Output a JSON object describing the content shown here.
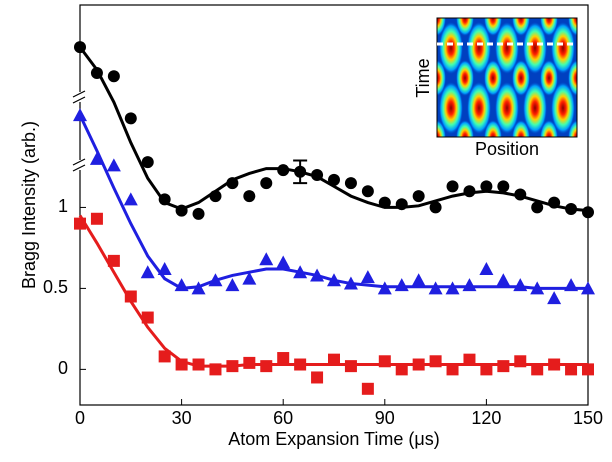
{
  "chart_data": {
    "type": "scatter",
    "xlabel": "Atom Expansion Time (μs)",
    "ylabel": "Bragg Intensity (arb.)",
    "xlim": [
      0,
      150
    ],
    "ylim": [
      -0.22,
      2.25
    ],
    "xticks": [
      0,
      30,
      60,
      90,
      120,
      150
    ],
    "yticks": [
      0,
      0.5,
      1
    ],
    "x": [
      0,
      5,
      10,
      15,
      20,
      25,
      30,
      35,
      40,
      45,
      50,
      55,
      60,
      65,
      70,
      75,
      80,
      85,
      90,
      95,
      100,
      105,
      110,
      115,
      120,
      125,
      130,
      135,
      140,
      145,
      150
    ],
    "series": [
      {
        "color": "#000000",
        "marker": "circle",
        "values": [
          1.99,
          1.83,
          1.81,
          1.55,
          1.28,
          1.05,
          0.98,
          0.96,
          1.07,
          1.15,
          1.07,
          1.15,
          1.23,
          1.22,
          1.2,
          1.17,
          1.15,
          1.1,
          1.03,
          1.02,
          1.07,
          1.0,
          1.13,
          1.1,
          1.13,
          1.13,
          1.08,
          1.0,
          1.03,
          0.99,
          0.97
        ],
        "fit": [
          1.99,
          1.85,
          1.65,
          1.4,
          1.18,
          1.03,
          0.99,
          1.03,
          1.1,
          1.17,
          1.21,
          1.24,
          1.24,
          1.22,
          1.19,
          1.13,
          1.07,
          1.03,
          1.0,
          1.0,
          1.01,
          1.04,
          1.07,
          1.09,
          1.1,
          1.09,
          1.07,
          1.04,
          1.01,
          0.99,
          0.98
        ]
      },
      {
        "color": "#1f1fe0",
        "marker": "triangle",
        "values": [
          1.57,
          1.3,
          1.26,
          1.05,
          0.6,
          0.62,
          0.52,
          0.5,
          0.55,
          0.52,
          0.56,
          0.68,
          0.66,
          0.6,
          0.58,
          0.55,
          0.53,
          0.57,
          0.5,
          0.52,
          0.55,
          0.5,
          0.5,
          0.52,
          0.62,
          0.55,
          0.52,
          0.5,
          0.44,
          0.52,
          0.5
        ],
        "fit": [
          1.57,
          1.35,
          1.12,
          0.9,
          0.7,
          0.56,
          0.5,
          0.51,
          0.55,
          0.58,
          0.6,
          0.62,
          0.62,
          0.6,
          0.58,
          0.55,
          0.53,
          0.52,
          0.51,
          0.51,
          0.51,
          0.51,
          0.51,
          0.51,
          0.51,
          0.51,
          0.51,
          0.5,
          0.5,
          0.5,
          0.5
        ]
      },
      {
        "color": "#e51c1c",
        "marker": "square",
        "values": [
          0.9,
          0.93,
          0.67,
          0.45,
          0.32,
          0.08,
          0.03,
          0.03,
          0.0,
          0.02,
          0.04,
          0.02,
          0.07,
          0.03,
          -0.05,
          0.06,
          0.02,
          -0.12,
          0.05,
          0.0,
          0.03,
          0.05,
          0.0,
          0.06,
          0.0,
          0.02,
          0.05,
          0.0,
          0.03,
          0.0,
          0.0
        ],
        "fit": [
          0.95,
          0.78,
          0.6,
          0.42,
          0.26,
          0.13,
          0.05,
          0.02,
          0.02,
          0.02,
          0.03,
          0.03,
          0.03,
          0.03,
          0.03,
          0.03,
          0.03,
          0.03,
          0.03,
          0.03,
          0.03,
          0.03,
          0.03,
          0.03,
          0.03,
          0.03,
          0.03,
          0.03,
          0.03,
          0.03,
          0.03
        ]
      }
    ],
    "error_bar": {
      "x": 65,
      "y": 1.22,
      "error": 0.07
    },
    "inset": {
      "xlabel": "Position",
      "ylabel": "Time"
    }
  }
}
